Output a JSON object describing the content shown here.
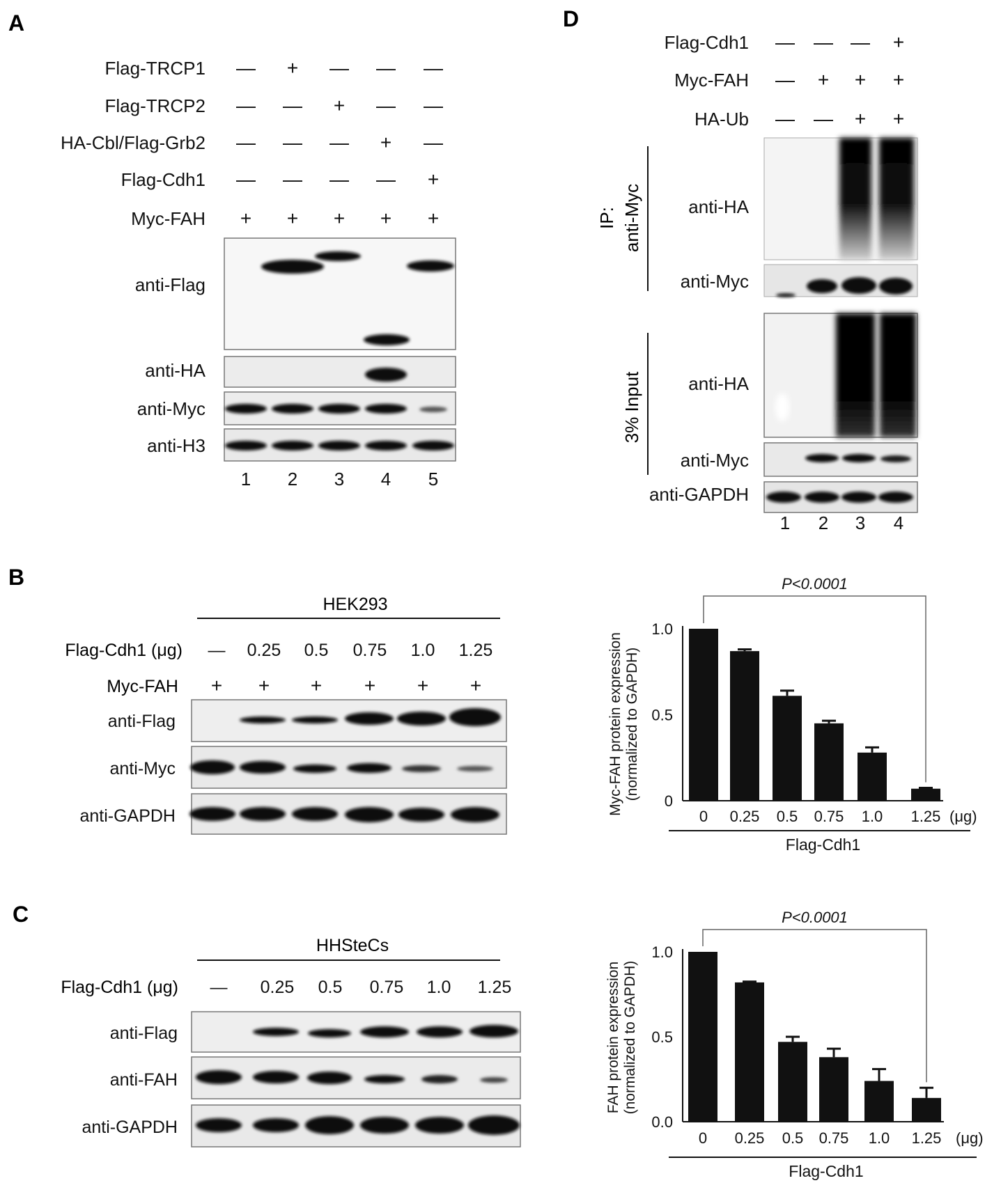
{
  "panelA": {
    "letter": "A",
    "rows": [
      {
        "label": "Flag-TRCP1",
        "signs": [
          "—",
          "+",
          "—",
          "—",
          "—"
        ]
      },
      {
        "label": "Flag-TRCP2",
        "signs": [
          "—",
          "—",
          "+",
          "—",
          "—"
        ]
      },
      {
        "label": "HA-Cbl/Flag-Grb2",
        "signs": [
          "—",
          "—",
          "—",
          "+",
          "—"
        ]
      },
      {
        "label": "Flag-Cdh1",
        "signs": [
          "—",
          "—",
          "—",
          "—",
          "+"
        ]
      },
      {
        "label": "Myc-FAH",
        "signs": [
          "+",
          "+",
          "+",
          "+",
          "+"
        ]
      }
    ],
    "blots": [
      "anti-Flag",
      "anti-HA",
      "anti-Myc",
      "anti-H3"
    ],
    "lanes": [
      "1",
      "2",
      "3",
      "4",
      "5"
    ]
  },
  "panelB": {
    "letter": "B",
    "cell_line": "HEK293",
    "dose_label": "Flag-Cdh1 (μg)",
    "doses": [
      "—",
      "0.25",
      "0.5",
      "0.75",
      "1.0",
      "1.25"
    ],
    "myc_label": "Myc-FAH",
    "myc_signs": [
      "+",
      "+",
      "+",
      "+",
      "+",
      "+"
    ],
    "blots": [
      "anti-Flag",
      "anti-Myc",
      "anti-GAPDH"
    ]
  },
  "panelC": {
    "letter": "C",
    "cell_line": "HHSteCs",
    "dose_label": "Flag-Cdh1 (μg)",
    "doses": [
      "—",
      "0.25",
      "0.5",
      "0.75",
      "1.0",
      "1.25"
    ],
    "blots": [
      "anti-Flag",
      "anti-FAH",
      "anti-GAPDH"
    ]
  },
  "panelD": {
    "letter": "D",
    "rows": [
      {
        "label": "Flag-Cdh1",
        "signs": [
          "—",
          "—",
          "—",
          "+"
        ]
      },
      {
        "label": "Myc-FAH",
        "signs": [
          "—",
          "+",
          "+",
          "+"
        ]
      },
      {
        "label": "HA-Ub",
        "signs": [
          "—",
          "—",
          "+",
          "+"
        ]
      }
    ],
    "ip_label": "IP:",
    "ip_label2": "anti-Myc",
    "input_label": "3% Input",
    "ip_blots": [
      "anti-HA",
      "anti-Myc"
    ],
    "input_blots": [
      "anti-HA",
      "anti-Myc",
      "anti-GAPDH"
    ],
    "lanes": [
      "1",
      "2",
      "3",
      "4"
    ]
  },
  "chart_data": [
    {
      "type": "bar",
      "categories": [
        "0",
        "0.25",
        "0.5",
        "0.75",
        "1.0",
        "1.25"
      ],
      "values": [
        1.0,
        0.87,
        0.61,
        0.45,
        0.28,
        0.07
      ],
      "errors": [
        0.0,
        0.01,
        0.03,
        0.015,
        0.03,
        0.005
      ],
      "ylabel": "Myc-FAH protein expression",
      "ylabel2": "(normalized to GAPDH)",
      "xlabel": "Flag-Cdh1",
      "xunit": "(μg)",
      "yticks": [
        "0",
        "0.5",
        "1.0"
      ],
      "ylim": [
        0,
        1.0
      ],
      "annotation": "P<0.0001"
    },
    {
      "type": "bar",
      "categories": [
        "0",
        "0.25",
        "0.5",
        "0.75",
        "1.0",
        "1.25"
      ],
      "values": [
        1.0,
        0.82,
        0.47,
        0.38,
        0.24,
        0.14
      ],
      "errors": [
        0.0,
        0.005,
        0.03,
        0.05,
        0.07,
        0.06
      ],
      "ylabel": "FAH protein expression",
      "ylabel2": "(normalized to GAPDH)",
      "xlabel": "Flag-Cdh1",
      "xunit": "(μg)",
      "yticks": [
        "0.0",
        "0.5",
        "1.0"
      ],
      "ylim": [
        0,
        1.0
      ],
      "annotation": "P<0.0001"
    }
  ]
}
